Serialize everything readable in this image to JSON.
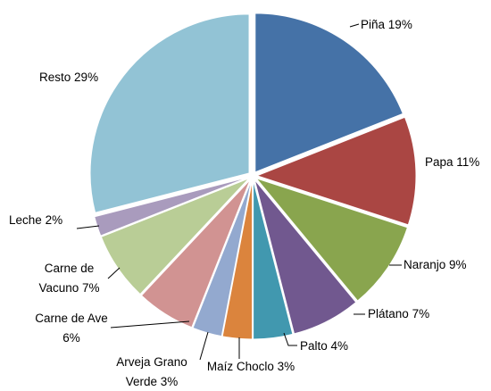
{
  "chart_data": {
    "type": "pie",
    "categories": [
      "Piña",
      "Papa",
      "Naranjo",
      "Plátano",
      "Palto",
      "Maíz Choclo",
      "Arveja Grano Verde",
      "Carne de Ave",
      "Carne de Vacuno",
      "Leche",
      "Resto"
    ],
    "values": [
      19,
      11,
      9,
      7,
      4,
      3,
      3,
      6,
      7,
      2,
      29
    ],
    "value_labels": [
      "19%",
      "11%",
      "9%",
      "7%",
      "4%",
      "3%",
      "3%",
      "6%",
      "7%",
      "2%",
      "29%"
    ],
    "colors": [
      "#4572a7",
      "#aa4643",
      "#89a54e",
      "#71588f",
      "#4198af",
      "#db843d",
      "#93a9cf",
      "#d19392",
      "#b9cd96",
      "#a99bbd",
      "#92c3d5"
    ]
  }
}
